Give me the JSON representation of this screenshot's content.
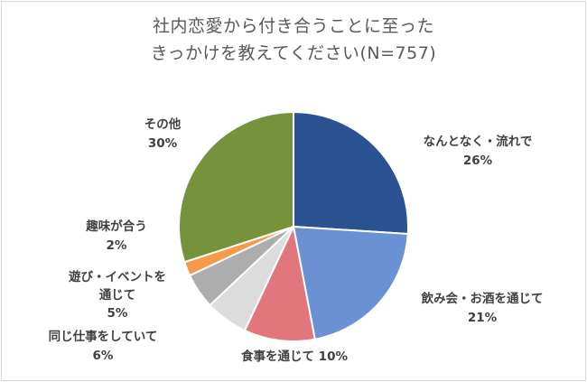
{
  "chart_data": {
    "type": "pie",
    "title_line1": "社内恋愛から付き合うことに至った",
    "title_line2": "きっかけを教えてください(N=757)",
    "title": "社内恋愛から付き合うことに至ったきっかけを教えてください(N=757)",
    "start_angle_deg": 0,
    "direction": "clockwise",
    "center": [
      325,
      251
    ],
    "radius": 127,
    "slices": [
      {
        "label": "なんとなく・流れで",
        "value": 26,
        "display": "26%",
        "color": "#2b5391"
      },
      {
        "label": "飲み会・お酒を通じて",
        "value": 21,
        "display": "21%",
        "color": "#6a91d4"
      },
      {
        "label": "食事を通じて",
        "value": 10,
        "display": "10%",
        "color": "#e1767c"
      },
      {
        "label": "同じ仕事をしていて",
        "value": 6,
        "display": "6%",
        "color": "#dcdcdc"
      },
      {
        "label": "遊び・イベントを通じて",
        "value": 5,
        "display": "5%",
        "color": "#adadad"
      },
      {
        "label": "趣味が合う",
        "value": 2,
        "display": "2%",
        "color": "#f59a48"
      },
      {
        "label": "その他",
        "value": 30,
        "display": "30%",
        "color": "#76933c"
      }
    ],
    "legend": "none (data labels)"
  },
  "labels": {
    "s0": {
      "line1": "なんとなく・流れで",
      "line2": "26%"
    },
    "s1": {
      "line1": "飲み会・お酒を通じて",
      "line2": "21%"
    },
    "s2": {
      "line1": "食事を通じて 10%"
    },
    "s3": {
      "line1": "同じ仕事をしていて",
      "line2": "6%"
    },
    "s4": {
      "line1": "遊び・イベントを",
      "line2": "通じて",
      "line3": "5%"
    },
    "s5": {
      "line1": "趣味が合う",
      "line2": "2%"
    },
    "s6": {
      "line1": "その他",
      "line2": "30%"
    }
  }
}
